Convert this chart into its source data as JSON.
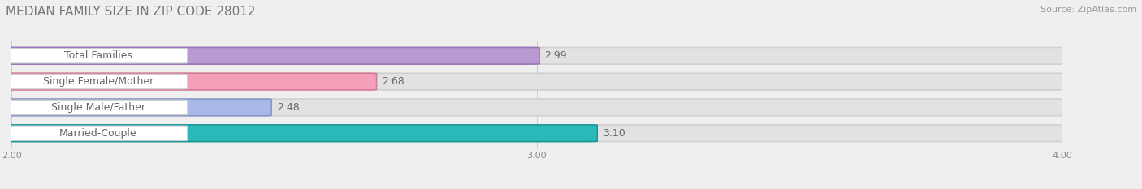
{
  "title": "MEDIAN FAMILY SIZE IN ZIP CODE 28012",
  "source": "Source: ZipAtlas.com",
  "categories": [
    "Married-Couple",
    "Single Male/Father",
    "Single Female/Mother",
    "Total Families"
  ],
  "values": [
    3.1,
    2.48,
    2.68,
    2.99
  ],
  "bar_colors": [
    "#2ab8b8",
    "#aab8e8",
    "#f4a0b8",
    "#b89ad0"
  ],
  "bar_edge_colors": [
    "#1a9898",
    "#8898c8",
    "#d87898",
    "#9878b8"
  ],
  "background_color": "#efefef",
  "bar_bg_color": "#e2e2e2",
  "bar_bg_edge_color": "#d0d0d0",
  "label_font_color": "#666666",
  "value_font_color": "#666666",
  "tick_color": "#888888",
  "title_color": "#777777",
  "source_color": "#999999",
  "xlim": [
    2.0,
    4.0
  ],
  "xticks": [
    2.0,
    3.0,
    4.0
  ],
  "xtick_labels": [
    "2.00",
    "3.00",
    "4.00"
  ],
  "title_fontsize": 11,
  "source_fontsize": 8,
  "label_fontsize": 9,
  "value_fontsize": 9,
  "bar_height": 0.62,
  "figsize": [
    14.06,
    2.33
  ],
  "dpi": 100
}
